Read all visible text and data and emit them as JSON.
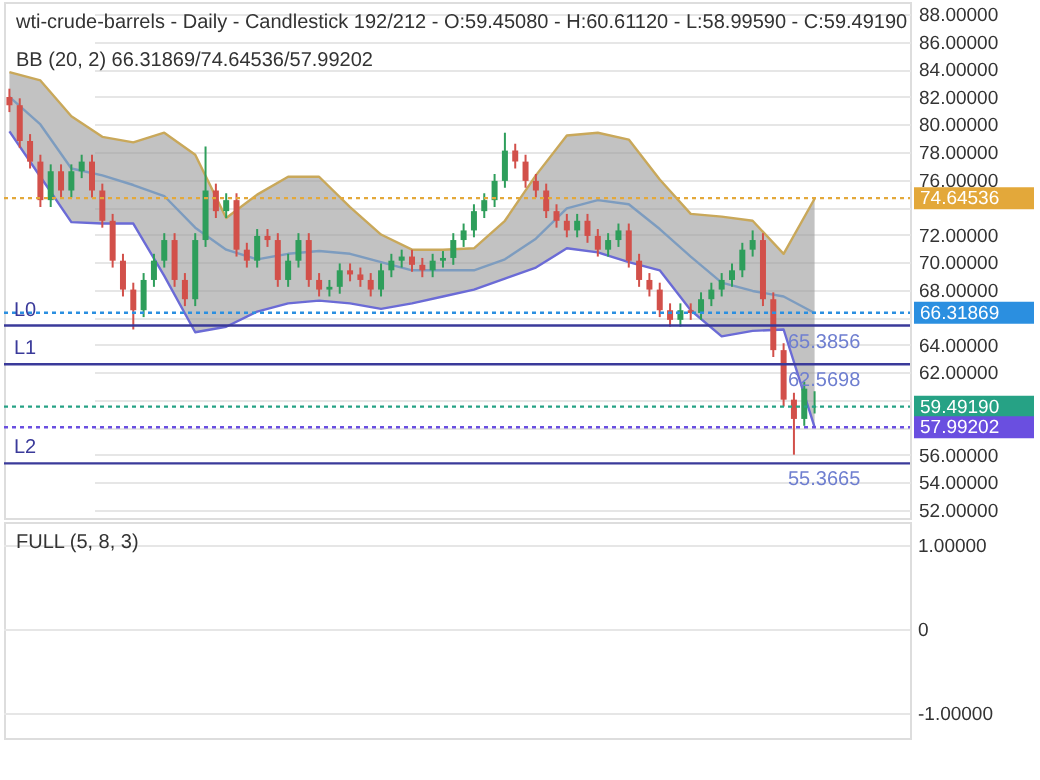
{
  "chart_data": [
    {
      "type": "candlestick",
      "title": "wti-crude-barrels - Daily - Candlestick    192/212 - O:59.45080 - H:60.61120 - L:58.99590 - C:59.49190",
      "annotations": [
        "BB (20, 2)    66.31869/74.64536/57.99202",
        {
          "text": "65.3856",
          "y": 65.3856
        },
        {
          "text": "62.5698",
          "y": 62.5698
        },
        {
          "text": "55.3665",
          "y": 55.3665
        }
      ],
      "categories": [
        null,
        null,
        null,
        null,
        null,
        null,
        null,
        null,
        null,
        null,
        null,
        null,
        null,
        null,
        null,
        null,
        null,
        null,
        null,
        null,
        null,
        null,
        null,
        null,
        null,
        null,
        null,
        null,
        null,
        null,
        null,
        null,
        null,
        null,
        null,
        null,
        null,
        null,
        null,
        null,
        null,
        null,
        null,
        null,
        null,
        null,
        null,
        null,
        null,
        null,
        null,
        null,
        null,
        null,
        null,
        null,
        null,
        null,
        null,
        null,
        null,
        null,
        null,
        null,
        null,
        null,
        null,
        null,
        null,
        null,
        null,
        null,
        null,
        null,
        null,
        null,
        null,
        null,
        null
      ],
      "ohlc": [
        [
          82.0,
          82.6,
          80.9,
          81.4
        ],
        [
          81.4,
          81.9,
          78.3,
          78.8
        ],
        [
          78.8,
          79.3,
          76.8,
          77.3
        ],
        [
          77.3,
          77.8,
          74.0,
          74.5
        ],
        [
          74.5,
          77.1,
          74.0,
          76.6
        ],
        [
          76.6,
          77.1,
          74.7,
          75.2
        ],
        [
          75.2,
          77.1,
          74.7,
          76.6
        ],
        [
          76.6,
          77.8,
          76.1,
          77.3
        ],
        [
          77.3,
          77.8,
          74.7,
          75.2
        ],
        [
          75.2,
          75.7,
          72.5,
          73.0
        ],
        [
          73.0,
          73.5,
          69.6,
          70.1
        ],
        [
          70.1,
          70.6,
          67.5,
          68.0
        ],
        [
          68.0,
          68.5,
          65.1,
          66.5
        ],
        [
          66.5,
          69.2,
          66.0,
          68.7
        ],
        [
          68.7,
          70.6,
          68.2,
          70.1
        ],
        [
          70.1,
          72.1,
          69.6,
          71.6
        ],
        [
          71.6,
          72.1,
          68.2,
          68.7
        ],
        [
          68.7,
          69.2,
          66.8,
          67.3
        ],
        [
          67.3,
          72.1,
          66.8,
          71.6
        ],
        [
          71.6,
          78.4,
          71.1,
          75.2
        ],
        [
          75.2,
          75.7,
          73.2,
          73.7
        ],
        [
          73.7,
          75.0,
          73.2,
          74.5
        ],
        [
          74.5,
          75.0,
          70.4,
          70.9
        ],
        [
          70.9,
          71.4,
          69.6,
          70.1
        ],
        [
          70.1,
          72.4,
          69.6,
          71.9
        ],
        [
          71.9,
          72.4,
          71.1,
          71.6
        ],
        [
          71.6,
          72.1,
          68.2,
          68.7
        ],
        [
          68.7,
          70.6,
          68.2,
          70.1
        ],
        [
          70.1,
          72.1,
          69.6,
          71.6
        ],
        [
          71.6,
          72.1,
          68.2,
          68.7
        ],
        [
          68.7,
          69.2,
          67.5,
          68.0
        ],
        [
          68.0,
          68.7,
          67.5,
          68.2
        ],
        [
          68.2,
          69.9,
          67.7,
          69.4
        ],
        [
          69.4,
          69.9,
          68.6,
          69.1
        ],
        [
          69.1,
          69.6,
          68.2,
          68.7
        ],
        [
          68.7,
          69.2,
          67.5,
          68.0
        ],
        [
          68.0,
          69.9,
          67.5,
          69.4
        ],
        [
          69.4,
          70.6,
          68.9,
          70.1
        ],
        [
          70.1,
          70.9,
          69.6,
          70.4
        ],
        [
          70.4,
          70.9,
          69.3,
          69.8
        ],
        [
          69.8,
          70.3,
          68.9,
          69.4
        ],
        [
          69.4,
          70.6,
          68.9,
          70.1
        ],
        [
          70.1,
          70.8,
          69.6,
          70.3
        ],
        [
          70.3,
          72.1,
          69.8,
          71.6
        ],
        [
          71.6,
          72.8,
          71.1,
          72.3
        ],
        [
          72.3,
          74.2,
          71.8,
          73.7
        ],
        [
          73.7,
          75.0,
          73.2,
          74.5
        ],
        [
          74.5,
          76.4,
          74.0,
          75.9
        ],
        [
          75.9,
          79.4,
          75.4,
          78.1
        ],
        [
          78.1,
          78.6,
          76.8,
          77.3
        ],
        [
          77.3,
          77.8,
          75.4,
          75.9
        ],
        [
          75.9,
          76.4,
          74.7,
          75.2
        ],
        [
          75.2,
          75.7,
          73.2,
          73.7
        ],
        [
          73.7,
          74.2,
          72.5,
          73.0
        ],
        [
          73.0,
          73.5,
          71.8,
          72.3
        ],
        [
          72.3,
          73.5,
          71.8,
          73.0
        ],
        [
          73.0,
          73.5,
          71.4,
          71.9
        ],
        [
          71.9,
          72.4,
          70.4,
          70.9
        ],
        [
          70.9,
          72.1,
          70.4,
          71.6
        ],
        [
          71.6,
          72.8,
          71.1,
          72.3
        ],
        [
          72.3,
          72.8,
          69.6,
          70.1
        ],
        [
          70.1,
          70.6,
          68.2,
          68.7
        ],
        [
          68.7,
          69.2,
          67.5,
          68.0
        ],
        [
          68.0,
          68.5,
          66.0,
          66.5
        ],
        [
          66.5,
          67.0,
          65.3,
          65.8
        ],
        [
          65.8,
          67.0,
          65.3,
          66.5
        ],
        [
          66.5,
          67.0,
          65.8,
          66.3
        ],
        [
          66.3,
          67.8,
          65.8,
          67.3
        ],
        [
          67.3,
          68.5,
          66.8,
          68.0
        ],
        [
          68.0,
          69.2,
          67.5,
          68.7
        ],
        [
          68.7,
          69.9,
          68.2,
          69.4
        ],
        [
          69.4,
          71.4,
          68.9,
          70.9
        ],
        [
          70.9,
          72.3,
          70.4,
          71.6
        ],
        [
          71.6,
          72.1,
          66.8,
          67.3
        ],
        [
          67.3,
          67.8,
          63.1,
          63.6
        ],
        [
          63.6,
          64.1,
          59.5,
          60.0
        ],
        [
          60.0,
          60.5,
          56.0,
          58.6
        ],
        [
          58.6,
          61.3,
          58.1,
          60.8
        ],
        [
          59.4508,
          60.6112,
          58.9959,
          59.4919
        ]
      ],
      "series": [
        {
          "type": "line",
          "color": "#7d9cbf",
          "values": [
            82,
            null,
            null,
            80,
            null,
            null,
            76.8,
            null,
            null,
            76.3,
            null,
            null,
            75.6,
            null,
            null,
            74.8,
            null,
            null,
            72.5,
            null,
            null,
            70.9,
            null,
            null,
            70.2,
            null,
            null,
            70.6,
            null,
            null,
            70.8,
            null,
            null,
            70.6,
            null,
            null,
            70,
            null,
            null,
            69.4,
            null,
            null,
            69.4,
            null,
            null,
            69.4,
            null,
            null,
            70.2,
            null,
            null,
            71.7,
            null,
            null,
            73.9,
            null,
            null,
            74.5,
            null,
            null,
            74.2,
            null,
            null,
            72.4,
            null,
            null,
            70.4,
            null,
            null,
            68.5,
            null,
            null,
            67.9,
            null,
            null,
            67.5,
            null,
            null,
            66.3
          ],
          "lower": [
            79.5,
            null,
            null,
            76.2,
            null,
            null,
            72.9,
            null,
            null,
            72.8,
            null,
            null,
            72.8,
            null,
            null,
            69,
            null,
            null,
            64.9,
            null,
            null,
            65.3,
            null,
            null,
            66.4,
            null,
            null,
            67,
            null,
            null,
            67.2,
            null,
            null,
            67,
            null,
            null,
            66.6,
            null,
            null,
            67,
            null,
            null,
            67.5,
            null,
            null,
            68,
            null,
            null,
            68.8,
            null,
            null,
            69.6,
            null,
            null,
            71,
            null,
            null,
            70.7,
            null,
            null,
            70,
            null,
            null,
            69.4,
            null,
            null,
            66.5,
            null,
            null,
            64.6,
            null,
            null,
            65,
            null,
            null,
            65.1,
            null,
            null,
            58.0
          ],
          "upper": [
            83.8,
            null,
            null,
            83.2,
            null,
            null,
            80.6,
            null,
            null,
            79.1,
            null,
            null,
            78.7,
            null,
            null,
            79.4,
            null,
            null,
            77.8,
            null,
            null,
            73.2,
            null,
            null,
            74.9,
            null,
            null,
            76.2,
            null,
            null,
            76.2,
            null,
            null,
            74,
            null,
            null,
            72,
            null,
            null,
            70.9,
            null,
            null,
            70.9,
            null,
            null,
            71,
            null,
            null,
            73,
            null,
            null,
            76.3,
            null,
            null,
            79.2,
            null,
            null,
            79.4,
            null,
            null,
            78.9,
            null,
            null,
            76,
            null,
            null,
            73.5,
            null,
            null,
            73.3,
            null,
            null,
            73,
            null,
            null,
            70.6,
            null,
            null,
            74.6
          ]
        },
        {
          "type": "line",
          "color": "#c9a85a",
          "values": [
            83.8,
            null,
            null,
            83.2,
            null,
            null,
            80.6,
            null,
            null,
            79.1,
            null,
            null,
            78.7,
            null,
            null,
            79.4,
            null,
            null,
            77.8,
            null,
            null,
            73.2,
            null,
            null,
            74.9,
            null,
            null,
            76.2,
            null,
            null,
            76.2,
            null,
            null,
            74,
            null,
            null,
            72,
            null,
            null,
            70.9,
            null,
            null,
            70.9,
            null,
            null,
            71,
            null,
            null,
            73,
            null,
            null,
            76.3,
            null,
            null,
            79.2,
            null,
            null,
            79.4,
            null,
            null,
            78.9,
            null,
            null,
            76,
            null,
            null,
            73.5,
            null,
            null,
            73.3,
            null,
            null,
            73,
            null,
            null,
            70.6,
            null,
            null,
            74.6
          ]
        },
        {
          "type": "line",
          "color": "#6b6bd6",
          "values": [
            79.5,
            null,
            null,
            76.2,
            null,
            null,
            72.9,
            null,
            null,
            72.8,
            null,
            null,
            72.8,
            null,
            null,
            69,
            null,
            null,
            64.9,
            null,
            null,
            65.3,
            null,
            null,
            66.4,
            null,
            null,
            67,
            null,
            null,
            67.2,
            null,
            null,
            67,
            null,
            null,
            66.6,
            null,
            null,
            67,
            null,
            null,
            67.5,
            null,
            null,
            68,
            null,
            null,
            68.8,
            null,
            null,
            69.6,
            null,
            null,
            71,
            null,
            null,
            70.7,
            null,
            null,
            70,
            null,
            null,
            69.4,
            null,
            null,
            66.5,
            null,
            null,
            64.6,
            null,
            null,
            65,
            null,
            null,
            65.1,
            null,
            null,
            58.0
          ]
        }
      ],
      "ref_lines": [
        {
          "axis": "y",
          "value": 74.64536,
          "label": "74.64536",
          "color": "#e3a83a",
          "line_style": "dotted"
        },
        {
          "axis": "y",
          "value": 66.31869,
          "label": "66.31869",
          "color": "#2b8fe0",
          "line_style": "dotted"
        },
        {
          "axis": "y",
          "value": 59.4919,
          "label": "59.49190",
          "color": "#26a285",
          "line_style": "dotted"
        },
        {
          "axis": "y",
          "value": 57.99202,
          "label": "57.99202",
          "color": "#6a4fe0",
          "line_style": "dotted"
        },
        {
          "axis": "y",
          "value": 65.3856,
          "label": "L0",
          "color": "#3a3a9a",
          "line_style": "solid"
        },
        {
          "axis": "y",
          "value": 62.5698,
          "label": "L1",
          "color": "#3a3a9a",
          "line_style": "solid"
        },
        {
          "axis": "y",
          "value": 55.3665,
          "label": "L2",
          "color": "#3a3a9a",
          "line_style": "solid"
        }
      ],
      "ylim": [
        51.4,
        88.9
      ],
      "yticks": [
        {
          "value": 52,
          "label": "52.00000"
        },
        {
          "value": 54,
          "label": "54.00000"
        },
        {
          "value": 56,
          "label": "56.00000"
        },
        {
          "value": 58,
          "label": null
        },
        {
          "value": 60,
          "label": null
        },
        {
          "value": 62,
          "label": "62.00000"
        },
        {
          "value": 64,
          "label": "64.00000"
        },
        {
          "value": 66,
          "label": null
        },
        {
          "value": 68,
          "label": "68.00000"
        },
        {
          "value": 70,
          "label": "70.00000"
        },
        {
          "value": 72,
          "label": "72.00000"
        },
        {
          "value": 74,
          "label": null
        },
        {
          "value": 76,
          "label": "76.00000"
        },
        {
          "value": 78,
          "label": "78.00000"
        },
        {
          "value": 80,
          "label": "80.00000"
        },
        {
          "value": 82,
          "label": "82.00000"
        },
        {
          "value": 84,
          "label": "84.00000"
        },
        {
          "value": 86,
          "label": "86.00000"
        },
        {
          "value": 88,
          "label": "88.00000"
        }
      ],
      "grid": "y",
      "tick_labels": "y"
    },
    {
      "type": "other",
      "title": "FULL (5, 8, 3)",
      "annotations": [
        "1.00000",
        "0",
        "-1.00000"
      ]
    }
  ]
}
